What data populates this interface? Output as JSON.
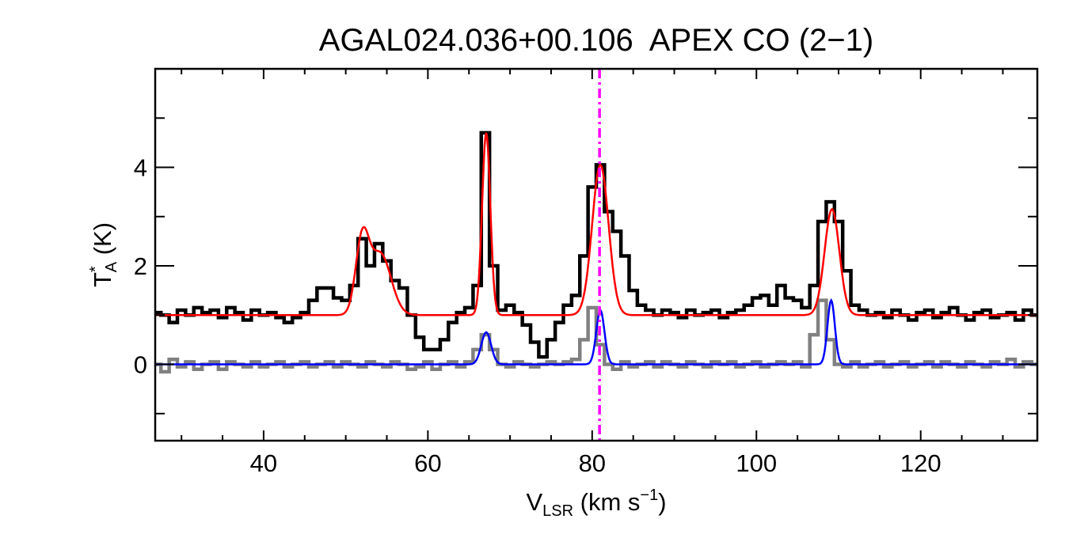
{
  "chart_data": {
    "type": "line",
    "title": "AGAL024.036+00.106  APEX CO (2−1)",
    "xlabel": {
      "main": "V",
      "sub": "LSR",
      "rest": " (km s",
      "sup": "−1",
      "close": ")"
    },
    "ylabel": {
      "main": "T",
      "sup": "*",
      "sub": "A",
      "rest": " (K)"
    },
    "xlim": [
      26.8,
      134.2
    ],
    "ylim": [
      -1.55,
      6.0
    ],
    "xticks": [
      40,
      60,
      80,
      100,
      120
    ],
    "xtick_labels": [
      "40",
      "60",
      "80",
      "100",
      "120"
    ],
    "x_minor_step": 5,
    "yticks": [
      0,
      2,
      4
    ],
    "ytick_labels": [
      "0",
      "2",
      "4"
    ],
    "y_minor_step": 1,
    "grid": false,
    "x_start": 27,
    "x_step": 1,
    "series": [
      {
        "color": "#000000",
        "style": "histogram",
        "values": [
          1.05,
          1.0,
          0.85,
          1.1,
          1.0,
          1.15,
          1.05,
          1.1,
          0.95,
          1.15,
          1.05,
          0.9,
          1.1,
          1.0,
          1.05,
          0.95,
          0.85,
          0.95,
          1.05,
          1.3,
          1.55,
          1.55,
          1.35,
          1.3,
          1.6,
          2.55,
          2.0,
          2.45,
          2.1,
          1.7,
          1.55,
          1.0,
          0.55,
          0.3,
          0.3,
          0.5,
          0.85,
          1.05,
          1.15,
          1.6,
          4.7,
          2.0,
          1.1,
          1.2,
          1.05,
          0.8,
          0.45,
          0.15,
          0.5,
          0.85,
          1.2,
          1.4,
          2.2,
          3.6,
          4.05,
          3.1,
          2.7,
          2.2,
          1.5,
          1.2,
          1.1,
          1.0,
          1.1,
          1.05,
          0.95,
          1.1,
          1.0,
          1.05,
          1.1,
          0.95,
          1.05,
          1.1,
          1.2,
          1.35,
          1.4,
          1.2,
          1.6,
          1.35,
          1.3,
          1.15,
          1.6,
          2.9,
          3.3,
          2.9,
          1.9,
          1.2,
          1.1,
          1.0,
          1.05,
          0.95,
          1.1,
          1.0,
          0.9,
          1.05,
          1.1,
          0.95,
          1.05,
          1.15,
          1.0,
          0.9,
          1.05,
          1.1,
          0.95,
          1.0,
          1.05,
          0.9,
          1.1,
          1.0
        ]
      },
      {
        "color": "#808080",
        "style": "histogram",
        "values": [
          0.0,
          -0.15,
          0.1,
          -0.05,
          0.05,
          -0.1,
          0.0,
          0.05,
          -0.1,
          0.05,
          0.0,
          -0.05,
          0.05,
          -0.05,
          0.0,
          0.05,
          -0.05,
          0.0,
          0.05,
          -0.05,
          0.0,
          0.05,
          -0.05,
          0.05,
          0.0,
          -0.05,
          0.05,
          0.0,
          -0.05,
          0.05,
          0.0,
          -0.1,
          -0.05,
          0.05,
          -0.1,
          0.0,
          0.05,
          -0.05,
          0.05,
          0.3,
          0.6,
          0.3,
          0.0,
          -0.05,
          0.05,
          0.0,
          -0.05,
          0.0,
          0.05,
          0.0,
          0.05,
          0.1,
          0.5,
          1.15,
          0.4,
          0.0,
          -0.1,
          0.05,
          -0.05,
          0.0,
          0.05,
          -0.05,
          0.05,
          0.0,
          -0.05,
          0.05,
          0.0,
          -0.05,
          0.05,
          0.0,
          0.05,
          -0.05,
          0.0,
          0.05,
          -0.05,
          0.0,
          0.05,
          0.0,
          0.05,
          -0.05,
          0.6,
          1.3,
          0.5,
          0.0,
          -0.05,
          0.05,
          -0.05,
          0.0,
          0.05,
          -0.05,
          0.0,
          0.05,
          -0.05,
          0.0,
          0.05,
          -0.05,
          0.05,
          0.0,
          -0.05,
          0.05,
          0.0,
          -0.05,
          0.05,
          0.0,
          0.1,
          -0.05,
          0.05,
          0.0
        ]
      },
      {
        "color": "#ff0000",
        "style": "gaussian-fit",
        "baseline": 1.0,
        "components": [
          {
            "amp": 1.45,
            "center": 52.0,
            "sigma": 0.8
          },
          {
            "amp": 1.25,
            "center": 54.2,
            "sigma": 1.3
          },
          {
            "amp": 3.7,
            "center": 67.1,
            "sigma": 0.5
          },
          {
            "amp": 3.05,
            "center": 81.0,
            "sigma": 1.0
          },
          {
            "amp": 2.15,
            "center": 109.2,
            "sigma": 0.9
          }
        ]
      },
      {
        "color": "#0000ff",
        "style": "gaussian-fit",
        "baseline": 0.0,
        "components": [
          {
            "amp": 0.65,
            "center": 67.1,
            "sigma": 0.6
          },
          {
            "amp": 1.1,
            "center": 81.0,
            "sigma": 0.5
          },
          {
            "amp": 1.3,
            "center": 109.1,
            "sigma": 0.45
          }
        ]
      }
    ],
    "vline": {
      "x": 80.9,
      "color": "#ff00ff",
      "style": "dash-dot"
    }
  }
}
